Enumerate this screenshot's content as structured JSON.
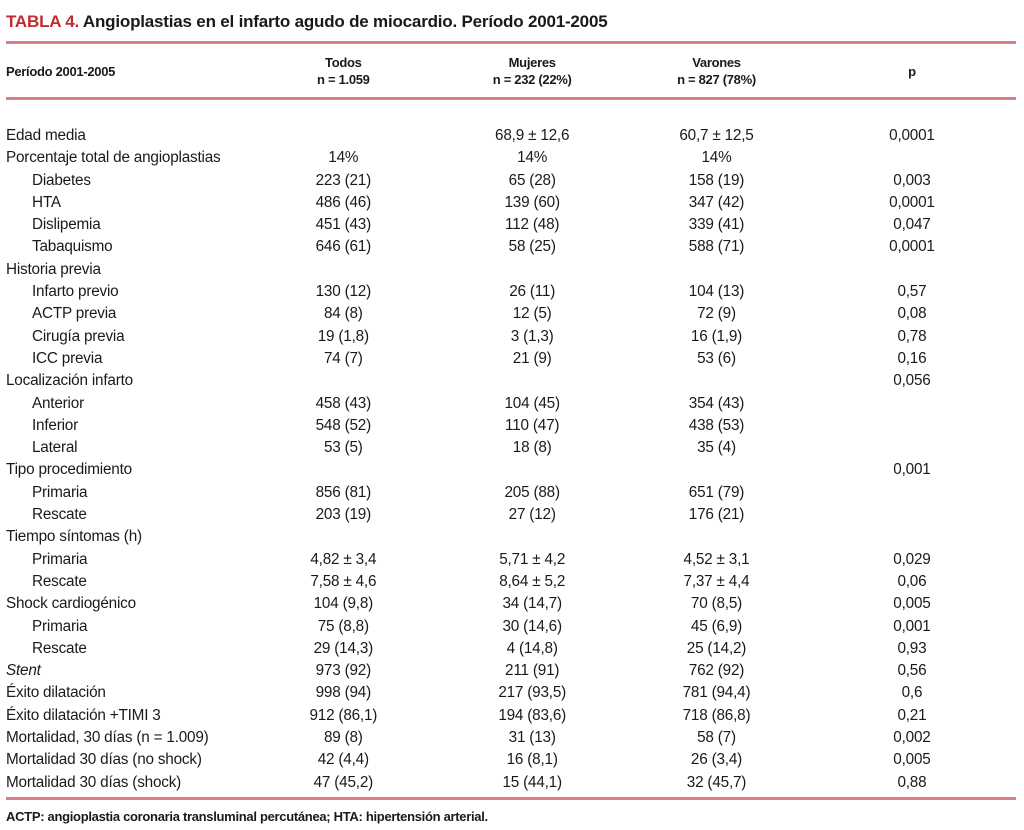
{
  "title": {
    "tag": "TABLA 4.",
    "text": "Angioplastias en el infarto agudo de miocardio. Período 2001-2005"
  },
  "colors": {
    "accent_red": "#c22a31",
    "rule_red": "#dc7f85"
  },
  "header": {
    "rowLabel": "Período 2001-2005",
    "todos": {
      "line1": "Todos",
      "line2": "n = 1.059"
    },
    "mujeres": {
      "line1": "Mujeres",
      "line2": "n = 232 (22%)"
    },
    "varones": {
      "line1": "Varones",
      "line2": "n = 827 (78%)"
    },
    "p": {
      "line1": "p",
      "line2": ""
    }
  },
  "rows": [
    {
      "label": "Edad media",
      "indent": false,
      "italic": false,
      "todos": "",
      "mujeres": "68,9 ± 12,6",
      "varones": "60,7 ± 12,5",
      "p": "0,0001"
    },
    {
      "label": "Porcentaje total de angioplastias",
      "indent": false,
      "italic": false,
      "todos": "14%",
      "mujeres": "14%",
      "varones": "14%",
      "p": ""
    },
    {
      "label": "Diabetes",
      "indent": true,
      "italic": false,
      "todos": "223 (21)",
      "mujeres": "65 (28)",
      "varones": "158 (19)",
      "p": "0,003"
    },
    {
      "label": "HTA",
      "indent": true,
      "italic": false,
      "todos": "486 (46)",
      "mujeres": "139 (60)",
      "varones": "347 (42)",
      "p": "0,0001"
    },
    {
      "label": "Dislipemia",
      "indent": true,
      "italic": false,
      "todos": "451 (43)",
      "mujeres": "112 (48)",
      "varones": "339 (41)",
      "p": "0,047"
    },
    {
      "label": "Tabaquismo",
      "indent": true,
      "italic": false,
      "todos": "646 (61)",
      "mujeres": "58 (25)",
      "varones": "588 (71)",
      "p": "0,0001"
    },
    {
      "label": "Historia previa",
      "indent": false,
      "italic": false,
      "todos": "",
      "mujeres": "",
      "varones": "",
      "p": ""
    },
    {
      "label": "Infarto previo",
      "indent": true,
      "italic": false,
      "todos": "130 (12)",
      "mujeres": "26 (11)",
      "varones": "104 (13)",
      "p": "0,57"
    },
    {
      "label": "ACTP previa",
      "indent": true,
      "italic": false,
      "todos": "84 (8)",
      "mujeres": "12 (5)",
      "varones": "72 (9)",
      "p": "0,08"
    },
    {
      "label": "Cirugía previa",
      "indent": true,
      "italic": false,
      "todos": "19 (1,8)",
      "mujeres": "3 (1,3)",
      "varones": "16 (1,9)",
      "p": "0,78"
    },
    {
      "label": "ICC previa",
      "indent": true,
      "italic": false,
      "todos": "74 (7)",
      "mujeres": "21 (9)",
      "varones": "53 (6)",
      "p": "0,16"
    },
    {
      "label": "Localización infarto",
      "indent": false,
      "italic": false,
      "todos": "",
      "mujeres": "",
      "varones": "",
      "p": "0,056"
    },
    {
      "label": "Anterior",
      "indent": true,
      "italic": false,
      "todos": "458 (43)",
      "mujeres": "104 (45)",
      "varones": "354 (43)",
      "p": ""
    },
    {
      "label": "Inferior",
      "indent": true,
      "italic": false,
      "todos": "548 (52)",
      "mujeres": "110 (47)",
      "varones": "438 (53)",
      "p": ""
    },
    {
      "label": "Lateral",
      "indent": true,
      "italic": false,
      "todos": "53 (5)",
      "mujeres": "18 (8)",
      "varones": "35 (4)",
      "p": ""
    },
    {
      "label": "Tipo procedimiento",
      "indent": false,
      "italic": false,
      "todos": "",
      "mujeres": "",
      "varones": "",
      "p": "0,001"
    },
    {
      "label": "Primaria",
      "indent": true,
      "italic": false,
      "todos": "856 (81)",
      "mujeres": "205 (88)",
      "varones": "651 (79)",
      "p": ""
    },
    {
      "label": "Rescate",
      "indent": true,
      "italic": false,
      "todos": "203 (19)",
      "mujeres": "27 (12)",
      "varones": "176 (21)",
      "p": ""
    },
    {
      "label": "Tiempo síntomas (h)",
      "indent": false,
      "italic": false,
      "todos": "",
      "mujeres": "",
      "varones": "",
      "p": ""
    },
    {
      "label": "Primaria",
      "indent": true,
      "italic": false,
      "todos": "4,82 ± 3,4",
      "mujeres": "5,71 ± 4,2",
      "varones": "4,52 ± 3,1",
      "p": "0,029"
    },
    {
      "label": "Rescate",
      "indent": true,
      "italic": false,
      "todos": "7,58 ± 4,6",
      "mujeres": "8,64 ± 5,2",
      "varones": "7,37 ± 4,4",
      "p": "0,06"
    },
    {
      "label": "Shock cardiogénico",
      "indent": false,
      "italic": false,
      "todos": "104 (9,8)",
      "mujeres": "34 (14,7)",
      "varones": "70 (8,5)",
      "p": "0,005"
    },
    {
      "label": "Primaria",
      "indent": true,
      "italic": false,
      "todos": "75 (8,8)",
      "mujeres": "30 (14,6)",
      "varones": "45 (6,9)",
      "p": "0,001"
    },
    {
      "label": "Rescate",
      "indent": true,
      "italic": false,
      "todos": "29 (14,3)",
      "mujeres": "4 (14,8)",
      "varones": "25 (14,2)",
      "p": "0,93"
    },
    {
      "label": "Stent",
      "indent": false,
      "italic": true,
      "todos": "973 (92)",
      "mujeres": "211 (91)",
      "varones": "762 (92)",
      "p": "0,56"
    },
    {
      "label": "Éxito dilatación",
      "indent": false,
      "italic": false,
      "todos": "998 (94)",
      "mujeres": "217 (93,5)",
      "varones": "781 (94,4)",
      "p": "0,6"
    },
    {
      "label": "Éxito dilatación +TIMI 3",
      "indent": false,
      "italic": false,
      "todos": "912 (86,1)",
      "mujeres": "194 (83,6)",
      "varones": "718 (86,8)",
      "p": "0,21"
    },
    {
      "label": "Mortalidad, 30 días (n = 1.009)",
      "indent": false,
      "italic": false,
      "todos": "89 (8)",
      "mujeres": "31 (13)",
      "varones": "58 (7)",
      "p": "0,002"
    },
    {
      "label": "Mortalidad 30 días (no shock)",
      "indent": false,
      "italic": false,
      "todos": "42 (4,4)",
      "mujeres": "16 (8,1)",
      "varones": "26 (3,4)",
      "p": "0,005"
    },
    {
      "label": "Mortalidad 30 días (shock)",
      "indent": false,
      "italic": false,
      "todos": "47 (45,2)",
      "mujeres": "15 (44,1)",
      "varones": "32 (45,7)",
      "p": "0,88"
    }
  ],
  "footnote": "ACTP: angioplastia coronaria transluminal percutánea; HTA: hipertensión arterial."
}
